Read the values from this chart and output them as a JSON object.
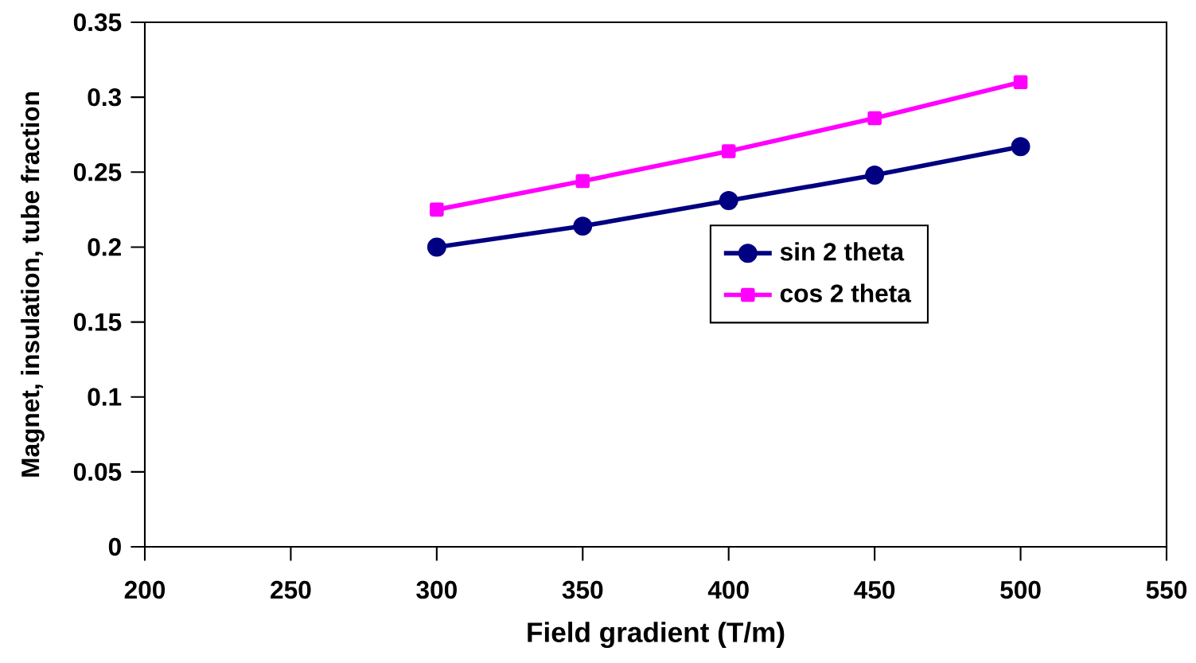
{
  "chart_data": {
    "type": "line",
    "xlabel": "Field gradient (T/m)",
    "ylabel": "Magnet, insulation, tube fraction",
    "x": [
      300,
      350,
      400,
      450,
      500
    ],
    "series": [
      {
        "name": "sin 2 theta",
        "color": "#000080",
        "marker": "circle",
        "values": [
          0.2,
          0.214,
          0.231,
          0.248,
          0.267
        ]
      },
      {
        "name": "cos 2 theta",
        "color": "#ff00ff",
        "marker": "square",
        "values": [
          0.225,
          0.244,
          0.264,
          0.286,
          0.31
        ]
      }
    ],
    "xlim": [
      200,
      550
    ],
    "xticks": [
      200,
      250,
      300,
      350,
      400,
      450,
      500,
      550
    ],
    "ylim": [
      0,
      0.35
    ],
    "yticks": [
      0,
      0.05,
      0.1,
      0.15,
      0.2,
      0.25,
      0.3,
      0.35
    ],
    "grid": false,
    "legend": "right",
    "line_style": "solid"
  }
}
